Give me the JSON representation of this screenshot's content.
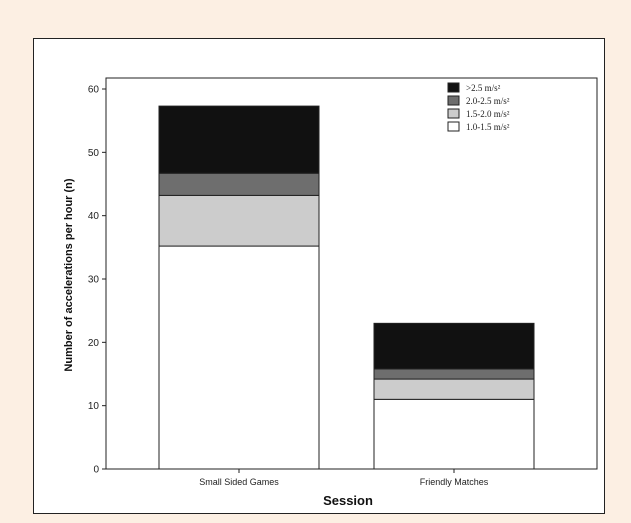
{
  "chart_data": {
    "type": "bar",
    "stacked": true,
    "title": "",
    "xlabel": "Session",
    "ylabel": "Number of accelerations per hour (n)",
    "ylim": [
      0,
      60
    ],
    "yticks": [
      0,
      10,
      20,
      30,
      40,
      50,
      60
    ],
    "categories": [
      "Small Sided Games",
      "Friendly Matches"
    ],
    "series": [
      {
        "name": "1.0-1.5 m/s²",
        "color": "#ffffff",
        "values": [
          35.2,
          11.0
        ]
      },
      {
        "name": "1.5-2.0 m/s²",
        "color": "#cccccc",
        "values": [
          8.0,
          3.2
        ]
      },
      {
        "name": "2.0-2.5 m/s²",
        "color": "#6e6e6e",
        "values": [
          3.5,
          1.6
        ]
      },
      {
        "name": ">2.5 m/s²",
        "color": "#111111",
        "values": [
          10.6,
          7.2
        ]
      }
    ],
    "legend_order": [
      3,
      2,
      1,
      0
    ],
    "legend_position": "top-right",
    "grid": false
  }
}
